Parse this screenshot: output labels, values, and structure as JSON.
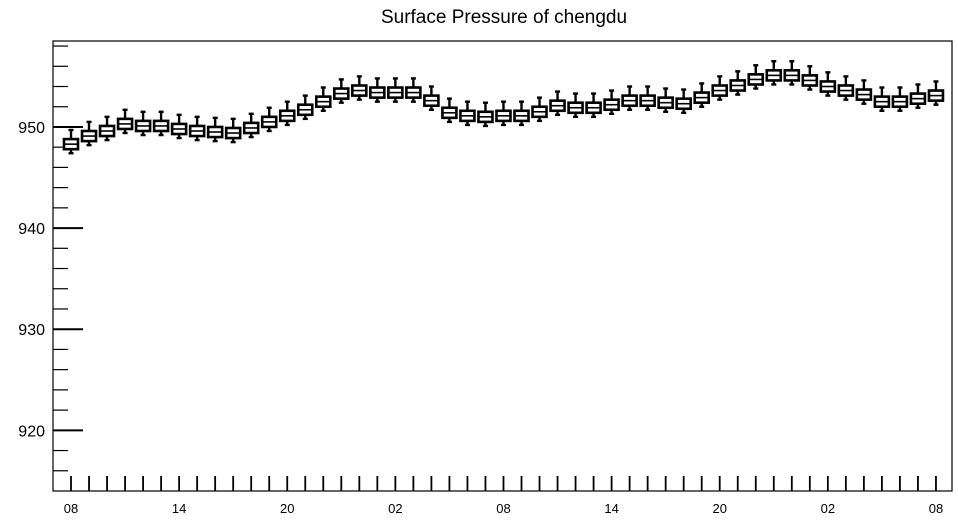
{
  "chart_data": {
    "type": "box",
    "title": "Surface Pressure of chengdu",
    "xlabel": "",
    "ylabel": "",
    "ylim": [
      914,
      958.5
    ],
    "grid": false,
    "legend": "none",
    "y_ticks": [
      920,
      930,
      940,
      950
    ],
    "x_ticks": [
      "08",
      "14",
      "20",
      "02",
      "08",
      "14",
      "20",
      "02",
      "08"
    ],
    "x_tick_hours": [
      0,
      6,
      12,
      18,
      24,
      30,
      36,
      42,
      48
    ],
    "hours": [
      0,
      1,
      2,
      3,
      4,
      5,
      6,
      7,
      8,
      9,
      10,
      11,
      12,
      13,
      14,
      15,
      16,
      17,
      18,
      19,
      20,
      21,
      22,
      23,
      24,
      25,
      26,
      27,
      28,
      29,
      30,
      31,
      32,
      33,
      34,
      35,
      36,
      37,
      38,
      39,
      40,
      41,
      42,
      43,
      44,
      45,
      46,
      47,
      48
    ],
    "median": [
      948.3,
      949.1,
      949.6,
      950.3,
      950.1,
      950.1,
      949.8,
      949.6,
      949.5,
      949.4,
      949.9,
      950.5,
      951.1,
      951.7,
      952.5,
      953.3,
      953.6,
      953.4,
      953.4,
      953.4,
      952.6,
      951.4,
      951.1,
      951.0,
      951.1,
      951.1,
      951.5,
      952.1,
      951.9,
      951.9,
      952.2,
      952.6,
      952.6,
      952.4,
      952.3,
      952.9,
      953.6,
      954.1,
      954.7,
      955.1,
      955.1,
      954.6,
      954.0,
      953.6,
      953.2,
      952.5,
      952.5,
      952.8,
      953.1
    ],
    "q1": [
      947.8,
      948.6,
      949.1,
      949.8,
      949.6,
      949.6,
      949.3,
      949.1,
      949.0,
      948.9,
      949.4,
      950.0,
      950.6,
      951.2,
      952.0,
      952.8,
      953.1,
      952.9,
      952.9,
      952.9,
      952.1,
      950.9,
      950.6,
      950.5,
      950.6,
      950.6,
      951.0,
      951.6,
      951.4,
      951.4,
      951.7,
      952.1,
      952.1,
      951.9,
      951.8,
      952.4,
      953.1,
      953.6,
      954.2,
      954.6,
      954.6,
      954.1,
      953.5,
      953.1,
      952.7,
      952.0,
      952.0,
      952.3,
      952.6
    ],
    "q3": [
      948.8,
      949.6,
      950.1,
      950.8,
      950.6,
      950.6,
      950.3,
      950.1,
      950.0,
      949.9,
      950.4,
      951.0,
      951.6,
      952.2,
      953.0,
      953.8,
      954.1,
      953.9,
      953.9,
      953.9,
      953.1,
      951.9,
      951.6,
      951.5,
      951.6,
      951.6,
      952.0,
      952.6,
      952.4,
      952.4,
      952.7,
      953.1,
      953.1,
      952.9,
      952.8,
      953.4,
      954.1,
      954.6,
      955.2,
      955.6,
      955.6,
      955.1,
      954.5,
      954.1,
      953.7,
      953.0,
      953.0,
      953.3,
      953.6
    ],
    "min": [
      947.4,
      948.2,
      948.7,
      949.4,
      949.2,
      949.2,
      948.9,
      948.7,
      948.6,
      948.5,
      949.0,
      949.6,
      950.2,
      950.8,
      951.6,
      952.4,
      952.7,
      952.5,
      952.5,
      952.5,
      951.7,
      950.5,
      950.2,
      950.1,
      950.2,
      950.2,
      950.6,
      951.2,
      951.0,
      951.0,
      951.3,
      951.7,
      951.7,
      951.5,
      951.4,
      952.0,
      952.7,
      953.2,
      953.8,
      954.2,
      954.2,
      953.7,
      953.1,
      952.7,
      952.3,
      951.6,
      951.6,
      951.9,
      952.2
    ],
    "max": [
      949.7,
      950.5,
      951.0,
      951.7,
      951.5,
      951.5,
      951.2,
      951.0,
      950.9,
      950.8,
      951.3,
      951.9,
      952.5,
      953.1,
      953.9,
      954.7,
      955.0,
      954.8,
      954.8,
      954.8,
      954.0,
      952.8,
      952.5,
      952.4,
      952.5,
      952.5,
      952.9,
      953.5,
      953.3,
      953.3,
      953.6,
      954.0,
      954.0,
      953.8,
      953.7,
      954.3,
      955.0,
      955.5,
      956.1,
      956.5,
      956.5,
      956.0,
      955.4,
      955.0,
      954.6,
      953.9,
      953.9,
      954.2,
      954.5
    ]
  }
}
